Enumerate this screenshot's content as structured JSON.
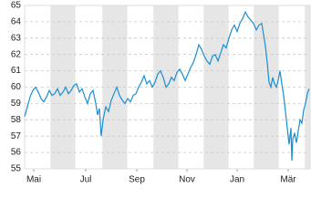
{
  "chart_data": {
    "type": "line",
    "x": [
      0,
      3,
      6,
      9,
      12,
      15,
      18,
      21,
      24,
      27,
      30,
      33,
      36,
      39,
      42,
      45,
      48,
      51,
      54,
      57,
      60,
      63,
      66,
      69,
      72,
      75,
      78,
      80,
      82,
      84,
      86,
      89,
      92,
      95,
      98,
      101,
      104,
      107,
      110,
      113,
      116,
      119,
      122,
      125,
      128,
      131,
      134,
      137,
      140,
      143,
      146,
      149,
      152,
      155,
      158,
      161,
      164,
      167,
      170,
      173,
      176,
      179,
      182,
      185,
      188,
      191,
      194,
      197,
      200,
      203,
      206,
      209,
      212,
      215,
      218,
      221,
      224,
      227,
      230,
      233,
      236,
      239,
      242,
      245,
      248,
      251,
      254,
      257,
      260,
      262,
      264,
      266,
      268,
      270,
      272,
      274,
      276,
      278,
      280,
      282,
      284,
      286,
      288,
      290,
      292,
      293,
      294,
      296,
      298,
      300,
      302,
      304,
      306,
      308,
      310,
      312
    ],
    "series": [
      {
        "color": "#1a8fd1",
        "values": [
          58.2,
          58.8,
          59.4,
          59.8,
          60.0,
          59.7,
          59.3,
          59.1,
          59.4,
          59.8,
          59.5,
          59.6,
          59.9,
          59.5,
          59.7,
          60.0,
          59.6,
          59.8,
          60.1,
          60.2,
          59.7,
          59.9,
          59.4,
          59.0,
          59.6,
          59.8,
          59.0,
          58.3,
          58.7,
          57.0,
          58.0,
          58.8,
          58.5,
          59.2,
          59.6,
          60.0,
          59.5,
          59.2,
          59.0,
          59.3,
          59.1,
          59.5,
          59.6,
          60.0,
          60.3,
          60.7,
          60.2,
          60.4,
          60.0,
          60.3,
          60.8,
          61.0,
          60.6,
          60.0,
          60.2,
          60.6,
          60.4,
          60.9,
          61.1,
          60.8,
          60.4,
          60.8,
          61.2,
          61.5,
          62.0,
          62.6,
          62.3,
          61.9,
          61.6,
          61.4,
          61.9,
          62.0,
          61.6,
          62.1,
          62.6,
          62.4,
          63.0,
          63.5,
          63.8,
          63.4,
          63.9,
          64.2,
          64.6,
          64.3,
          64.1,
          63.9,
          63.5,
          63.8,
          63.9,
          63.2,
          62.5,
          61.5,
          60.3,
          60.0,
          60.6,
          60.2,
          60.0,
          60.4,
          61.0,
          60.2,
          59.5,
          58.5,
          57.5,
          56.5,
          57.5,
          55.5,
          56.8,
          57.2,
          56.6,
          57.3,
          58.0,
          57.8,
          58.6,
          59.0,
          59.6,
          59.9
        ]
      }
    ],
    "xlim": [
      0,
      313
    ],
    "xticks": [
      {
        "value": 10,
        "label": "Mai"
      },
      {
        "value": 67,
        "label": "Jul"
      },
      {
        "value": 123,
        "label": "Sep"
      },
      {
        "value": 178,
        "label": "Nov"
      },
      {
        "value": 233,
        "label": "Jan"
      },
      {
        "value": 289,
        "label": "Mär"
      }
    ],
    "ylim": [
      55,
      65
    ],
    "yticks": [
      55,
      56,
      57,
      58,
      59,
      60,
      61,
      62,
      63,
      64,
      65
    ],
    "grid": true
  }
}
